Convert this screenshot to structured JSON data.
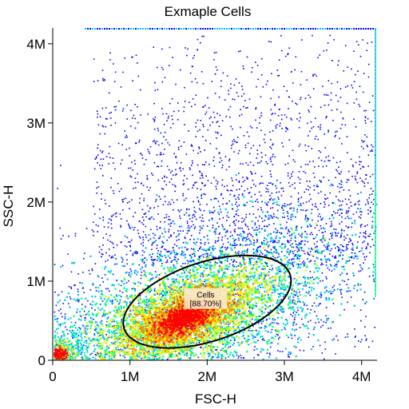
{
  "chart_data": {
    "type": "scatter",
    "subtype": "flow-cytometry density dot plot",
    "title": "Exmaple Cells",
    "xlabel": "FSC-H",
    "ylabel": "SSC-H",
    "xlim": [
      0,
      4200000
    ],
    "ylim": [
      0,
      4200000
    ],
    "x_ticks": [
      {
        "value": 0,
        "label": "0"
      },
      {
        "value": 1000000,
        "label": "1M"
      },
      {
        "value": 2000000,
        "label": "2M"
      },
      {
        "value": 3000000,
        "label": "3M"
      },
      {
        "value": 4000000,
        "label": "4M"
      }
    ],
    "y_ticks": [
      {
        "value": 0,
        "label": "0"
      },
      {
        "value": 1000000,
        "label": "1M"
      },
      {
        "value": 2000000,
        "label": "2M"
      },
      {
        "value": 3000000,
        "label": "3M"
      },
      {
        "value": 4000000,
        "label": "4M"
      }
    ],
    "grid": false,
    "color_scale": [
      "#0000ff",
      "#00c8ff",
      "#00ff80",
      "#c8ff00",
      "#ffe000",
      "#ff8000",
      "#ff0000"
    ],
    "populations": [
      {
        "center_x": 1700000,
        "center_y": 550000,
        "spread_x": 600000,
        "spread_y": 280000
      },
      {
        "center_x": 80000,
        "center_y": 80000,
        "spread_x": 60000,
        "spread_y": 60000
      }
    ],
    "gate": {
      "name": "Cells",
      "percentage_label": "[88.70%]",
      "percentage": 88.7,
      "shape": "ellipse",
      "center_x": 2000000,
      "center_y": 740000,
      "radius_x": 1130000,
      "radius_y": 500000,
      "rotation_deg": -18
    }
  }
}
